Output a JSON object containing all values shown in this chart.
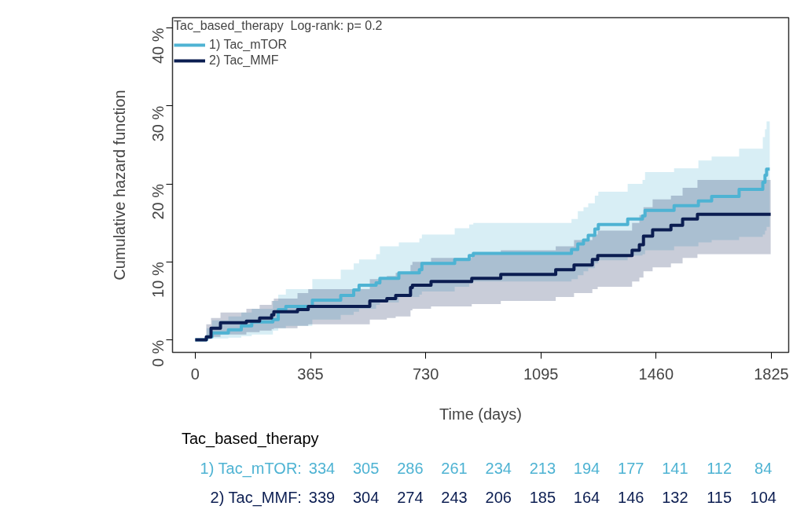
{
  "chart_data": {
    "type": "step",
    "xlabel": "Time (days)",
    "ylabel": "Cumulative hazard function",
    "legend_title": "Tac_based_therapy  Log-rank: p= 0.2",
    "legend": "top left",
    "grid": false,
    "xlim": [
      -72,
      1880
    ],
    "ylim": [
      -1.6,
      41.3
    ],
    "xticks": [
      0,
      365,
      730,
      1095,
      1460,
      1825
    ],
    "yticks": [
      {
        "value": 0,
        "label": "0 %"
      },
      {
        "value": 10,
        "label": "10 %"
      },
      {
        "value": 20,
        "label": "20 %"
      },
      {
        "value": 30,
        "label": "30 %"
      },
      {
        "value": 40,
        "label": "40 %"
      }
    ],
    "series": [
      {
        "name": "1) Tac_mTOR",
        "color": "#4eb3d3",
        "x": [
          0,
          36,
          53,
          105,
          146,
          179,
          246,
          263,
          287,
          371,
          461,
          502,
          519,
          573,
          585,
          645,
          710,
          718,
          822,
          868,
          881,
          1192,
          1212,
          1230,
          1245,
          1266,
          1277,
          1370,
          1417,
          1425,
          1517,
          1594,
          1636,
          1723,
          1798,
          1805,
          1810,
          1820
        ],
        "values": [
          0,
          0.4,
          0.9,
          1.3,
          1.8,
          2.3,
          2.6,
          3.9,
          4.3,
          5.1,
          5.7,
          6.4,
          7.0,
          7.3,
          7.9,
          8.6,
          9.0,
          9.8,
          10.3,
          10.8,
          11.1,
          11.6,
          12.3,
          12.8,
          13.4,
          14.2,
          14.8,
          15.5,
          15.9,
          16.6,
          17.2,
          17.8,
          18.4,
          19.3,
          20.2,
          21.1,
          21.9,
          21.9
        ],
        "lower": [
          0,
          0.1,
          0.2,
          0.3,
          0.5,
          0.7,
          1.2,
          1.5,
          1.8,
          2.6,
          3.2,
          3.6,
          4.0,
          4.5,
          4.8,
          5.5,
          5.8,
          6.2,
          6.8,
          7.2,
          7.5,
          7.8,
          8.3,
          8.8,
          9.2,
          9.8,
          10.2,
          10.8,
          11.0,
          11.5,
          12.0,
          12.5,
          12.8,
          13.2,
          13.5,
          14.0,
          14.5,
          14.5
        ],
        "upper": [
          0,
          1.5,
          2.5,
          3.0,
          3.5,
          4.0,
          5.0,
          5.8,
          6.5,
          7.8,
          9.0,
          9.8,
          10.3,
          11.0,
          12.0,
          12.5,
          13.0,
          13.5,
          14.3,
          14.8,
          15.0,
          15.5,
          16.5,
          17.0,
          17.5,
          18.5,
          19.0,
          20.0,
          20.5,
          21.5,
          22.0,
          23.0,
          23.5,
          24.5,
          26.0,
          27.0,
          28.0,
          28.0
        ]
      },
      {
        "name": "2) Tac_MMF",
        "color": "#0b1d51",
        "x": [
          0,
          35,
          50,
          80,
          162,
          204,
          242,
          249,
          324,
          358,
          553,
          607,
          635,
          682,
          688,
          747,
          876,
          968,
          1142,
          1200,
          1258,
          1275,
          1384,
          1407,
          1420,
          1449,
          1507,
          1544,
          1591,
          1823
        ],
        "values": [
          0,
          0.4,
          1.5,
          2.2,
          2.4,
          2.8,
          3.2,
          3.6,
          3.9,
          4.3,
          5.0,
          5.3,
          5.7,
          6.7,
          7.0,
          7.5,
          7.9,
          8.4,
          9.0,
          9.6,
          10.3,
          10.8,
          11.5,
          12.2,
          13.3,
          14.1,
          14.7,
          15.5,
          16.1,
          16.1
        ],
        "lower": [
          0,
          0.1,
          0.4,
          0.7,
          1.0,
          1.2,
          1.4,
          1.5,
          1.8,
          2.0,
          2.6,
          2.8,
          3.0,
          3.8,
          4.0,
          4.3,
          4.6,
          5.0,
          5.5,
          6.0,
          6.5,
          6.8,
          7.5,
          8.0,
          8.8,
          9.3,
          9.8,
          10.5,
          11.0,
          11.0
        ],
        "upper": [
          0,
          2.0,
          2.8,
          3.5,
          4.0,
          4.5,
          5.0,
          5.3,
          6.0,
          6.5,
          7.8,
          8.2,
          8.6,
          9.6,
          10.0,
          10.5,
          11.0,
          11.5,
          12.0,
          12.8,
          13.5,
          14.0,
          15.0,
          16.0,
          17.0,
          18.0,
          18.5,
          19.5,
          20.5,
          20.5
        ]
      }
    ],
    "annotations": [
      "Tac_based_therapy",
      "1) Tac_mTOR:",
      "334",
      "305",
      "286",
      "261",
      "234",
      "213",
      "194",
      "177",
      "141",
      "112",
      "84",
      "2) Tac_MMF:",
      "339",
      "304",
      "274",
      "243",
      "206",
      "185",
      "164",
      "146",
      "132",
      "115",
      "104"
    ]
  }
}
